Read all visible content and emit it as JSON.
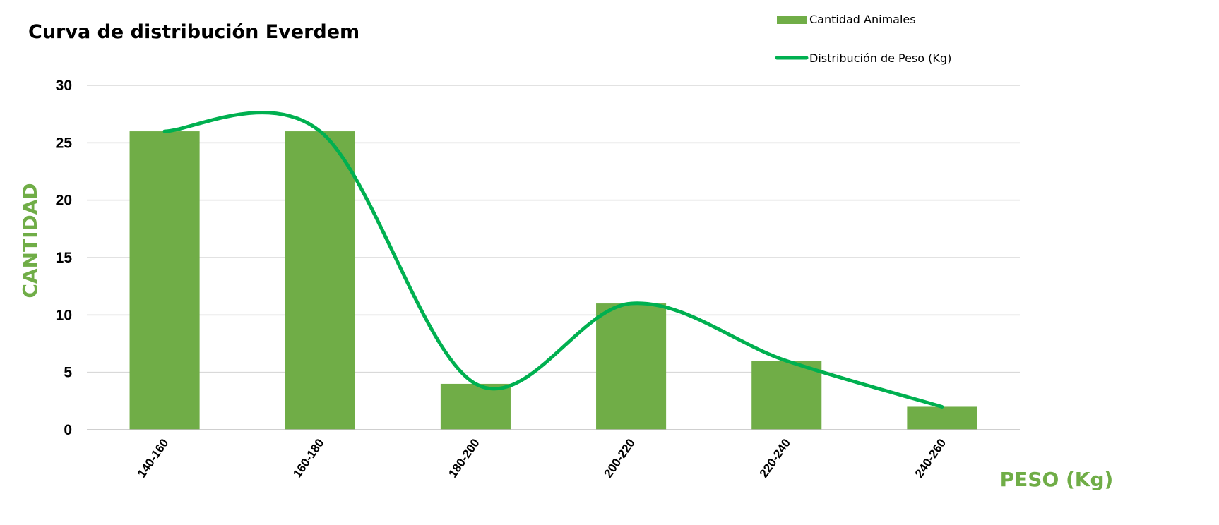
{
  "chart_data": {
    "type": "bar",
    "title": "Curva de distribución Everdem",
    "xlabel": "PESO (Kg)",
    "ylabel": "CANTIDAD",
    "categories": [
      "140-160",
      "160-180",
      "180-200",
      "200-220",
      "220-240",
      "240-260"
    ],
    "series": [
      {
        "name": "Cantidad Animales",
        "type": "bar",
        "color": "#70ad47",
        "values": [
          26,
          26,
          4,
          11,
          6,
          2
        ]
      },
      {
        "name": "Distribución de Peso (Kg)",
        "type": "line",
        "smooth": true,
        "color": "#00b050",
        "values": [
          26,
          26,
          4,
          11,
          6,
          2
        ]
      }
    ],
    "ylim": [
      0,
      30
    ],
    "yticks": [
      0,
      5,
      10,
      15,
      20,
      25,
      30
    ],
    "grid": true,
    "legend_position": "top-right",
    "label_color": "#70ad47"
  }
}
